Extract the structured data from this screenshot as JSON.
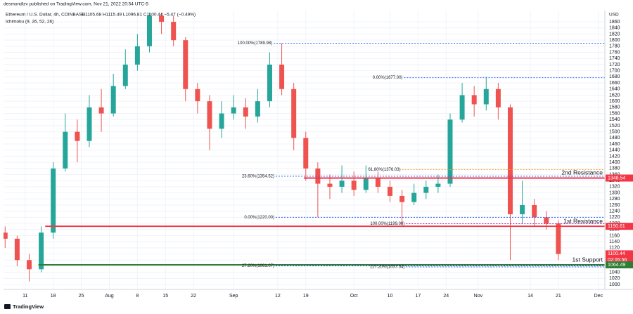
{
  "chart_data": {
    "type": "candlestick",
    "author_line": "desmondlzv published on TradingView.com, Nov 21, 2022 20:54 UTC-5",
    "title": "Ethereum / U.S. Dollar, 4h, COINBASE",
    "ohlc_line": "O1105.68 H1115.49 L1096.81 C1100.44 −5.47 (−0.49%)",
    "indicator": "Ichimoku (9, 26, 52, 26)",
    "y_unit": "USD",
    "brand": "TradingView",
    "up_color": "#26a69a",
    "down_color": "#ef5350",
    "grid": true,
    "xlim": [
      -5.4,
      144.6
    ],
    "ylim": [
      984,
      1897
    ],
    "xticks": [
      {
        "value": 0,
        "label": "11"
      },
      {
        "value": 7,
        "label": "18"
      },
      {
        "value": 14,
        "label": "25"
      },
      {
        "value": 21,
        "label": "Aug"
      },
      {
        "value": 28,
        "label": "8"
      },
      {
        "value": 35,
        "label": "15"
      },
      {
        "value": 42,
        "label": "22"
      },
      {
        "value": 52,
        "label": "Sep"
      },
      {
        "value": 63,
        "label": "12"
      },
      {
        "value": 70,
        "label": "19"
      },
      {
        "value": 82,
        "label": "Oct"
      },
      {
        "value": 91,
        "label": "10"
      },
      {
        "value": 98,
        "label": "17"
      },
      {
        "value": 105,
        "label": "24"
      },
      {
        "value": 113,
        "label": "Nov"
      },
      {
        "value": 126,
        "label": "14"
      },
      {
        "value": 133,
        "label": "21"
      },
      {
        "value": 143,
        "label": "Dec"
      }
    ],
    "yticks": [
      1000,
      1020,
      1040,
      1060,
      1080,
      1100,
      1120,
      1140,
      1160,
      1180,
      1200,
      1220,
      1240,
      1260,
      1280,
      1300,
      1320,
      1340,
      1360,
      1380,
      1400,
      1420,
      1440,
      1460,
      1480,
      1500,
      1520,
      1540,
      1560,
      1580,
      1600,
      1620,
      1640,
      1660,
      1680,
      1700,
      1720,
      1740,
      1760,
      1780,
      1800,
      1820,
      1840,
      1860
    ],
    "x": [
      -5,
      -2,
      1,
      4,
      7,
      10,
      13,
      16,
      19,
      22,
      25,
      28,
      31,
      34,
      37,
      40,
      43,
      46,
      49,
      52,
      55,
      58,
      61,
      64,
      67,
      70,
      73,
      76,
      79,
      82,
      85,
      88,
      91,
      94,
      97,
      100,
      103,
      106,
      109,
      112,
      115,
      118,
      121,
      124,
      127,
      130,
      133
    ],
    "open": [
      1170,
      1150,
      1080,
      1050,
      1170,
      1380,
      1500,
      1470,
      1580,
      1560,
      1650,
      1720,
      1780,
      1880,
      1860,
      1800,
      1640,
      1600,
      1510,
      1560,
      1580,
      1550,
      1600,
      1720,
      1640,
      1480,
      1380,
      1330,
      1320,
      1340,
      1310,
      1350,
      1320,
      1290,
      1270,
      1300,
      1320,
      1330,
      1540,
      1620,
      1590,
      1640,
      1580,
      1230,
      1260,
      1220,
      1200
    ],
    "high": [
      1190,
      1160,
      1100,
      1190,
      1400,
      1560,
      1540,
      1620,
      1640,
      1690,
      1770,
      1820,
      1890,
      1890,
      1880,
      1810,
      1660,
      1620,
      1600,
      1620,
      1610,
      1640,
      1760,
      1790,
      1660,
      1500,
      1400,
      1360,
      1390,
      1370,
      1390,
      1370,
      1340,
      1310,
      1330,
      1340,
      1360,
      1560,
      1660,
      1650,
      1680,
      1660,
      1590,
      1340,
      1280,
      1240,
      1210
    ],
    "low": [
      1120,
      1060,
      1010,
      1040,
      1150,
      1370,
      1400,
      1450,
      1500,
      1550,
      1640,
      1700,
      1760,
      1820,
      1780,
      1600,
      1560,
      1440,
      1480,
      1540,
      1510,
      1530,
      1580,
      1620,
      1440,
      1340,
      1220,
      1280,
      1300,
      1290,
      1300,
      1300,
      1270,
      1190,
      1260,
      1280,
      1300,
      1320,
      1530,
      1550,
      1570,
      1540,
      1080,
      1200,
      1190,
      1180,
      1080
    ],
    "close": [
      1150,
      1080,
      1050,
      1170,
      1380,
      1500,
      1470,
      1580,
      1560,
      1650,
      1720,
      1780,
      1880,
      1860,
      1800,
      1640,
      1600,
      1510,
      1560,
      1580,
      1550,
      1600,
      1720,
      1640,
      1480,
      1380,
      1330,
      1320,
      1340,
      1310,
      1350,
      1320,
      1290,
      1270,
      1300,
      1320,
      1330,
      1540,
      1620,
      1590,
      1640,
      1580,
      1230,
      1260,
      1220,
      1200,
      1100
    ],
    "levels": [
      {
        "label": "100.00%(1789.98)",
        "value": 1789.98,
        "from": 62,
        "color": "#2962ff",
        "style": "dotted"
      },
      {
        "label": "0.00%(1677.00)",
        "value": 1677.0,
        "from": 94.5,
        "color": "#2962ff",
        "style": "dotted"
      },
      {
        "label": "61.80%(1376.03)",
        "value": 1376.03,
        "from": 94,
        "color": "#f7a21b",
        "style": "dotted"
      },
      {
        "label": "23.60%(1354.52)",
        "value": 1354.52,
        "from": 62.5,
        "color": "#2962ff",
        "style": "dotted"
      },
      {
        "label": "0.00%(1220.00)",
        "value": 1220.0,
        "from": 62.5,
        "color": "#2962ff",
        "style": "dotted"
      },
      {
        "label": "100.00%(1199.00)",
        "value": 1199.0,
        "from": 95,
        "color": "#9c27b0",
        "style": "dotted"
      },
      {
        "label": "27.20%(1061.07)",
        "value": 1061.07,
        "from": 62.5,
        "color": "#2962ff",
        "style": "dotted"
      },
      {
        "label": "127.20%(1057.54)",
        "value": 1057.54,
        "from": 95,
        "color": "#2962ff",
        "style": "dotted"
      }
    ],
    "zones": [
      {
        "label": "2nd Resistance",
        "value": 1348.54,
        "from": 69.5,
        "color": "#f23645"
      },
      {
        "label": "1st Resistance",
        "value": 1190.61,
        "from": 5,
        "color": "#f23645"
      },
      {
        "label": "1st Support",
        "value": 1064.49,
        "from": 3.3,
        "color": "#2e7d32"
      }
    ],
    "price_tags": [
      {
        "value": 1348.54,
        "color": "#f23645"
      },
      {
        "value": 1190.61,
        "color": "#f23645"
      },
      {
        "value": 1100.44,
        "color": "#f23645",
        "countdown": "02:05:56"
      },
      {
        "value": 1064.49,
        "color": "#2e7d32"
      }
    ]
  }
}
